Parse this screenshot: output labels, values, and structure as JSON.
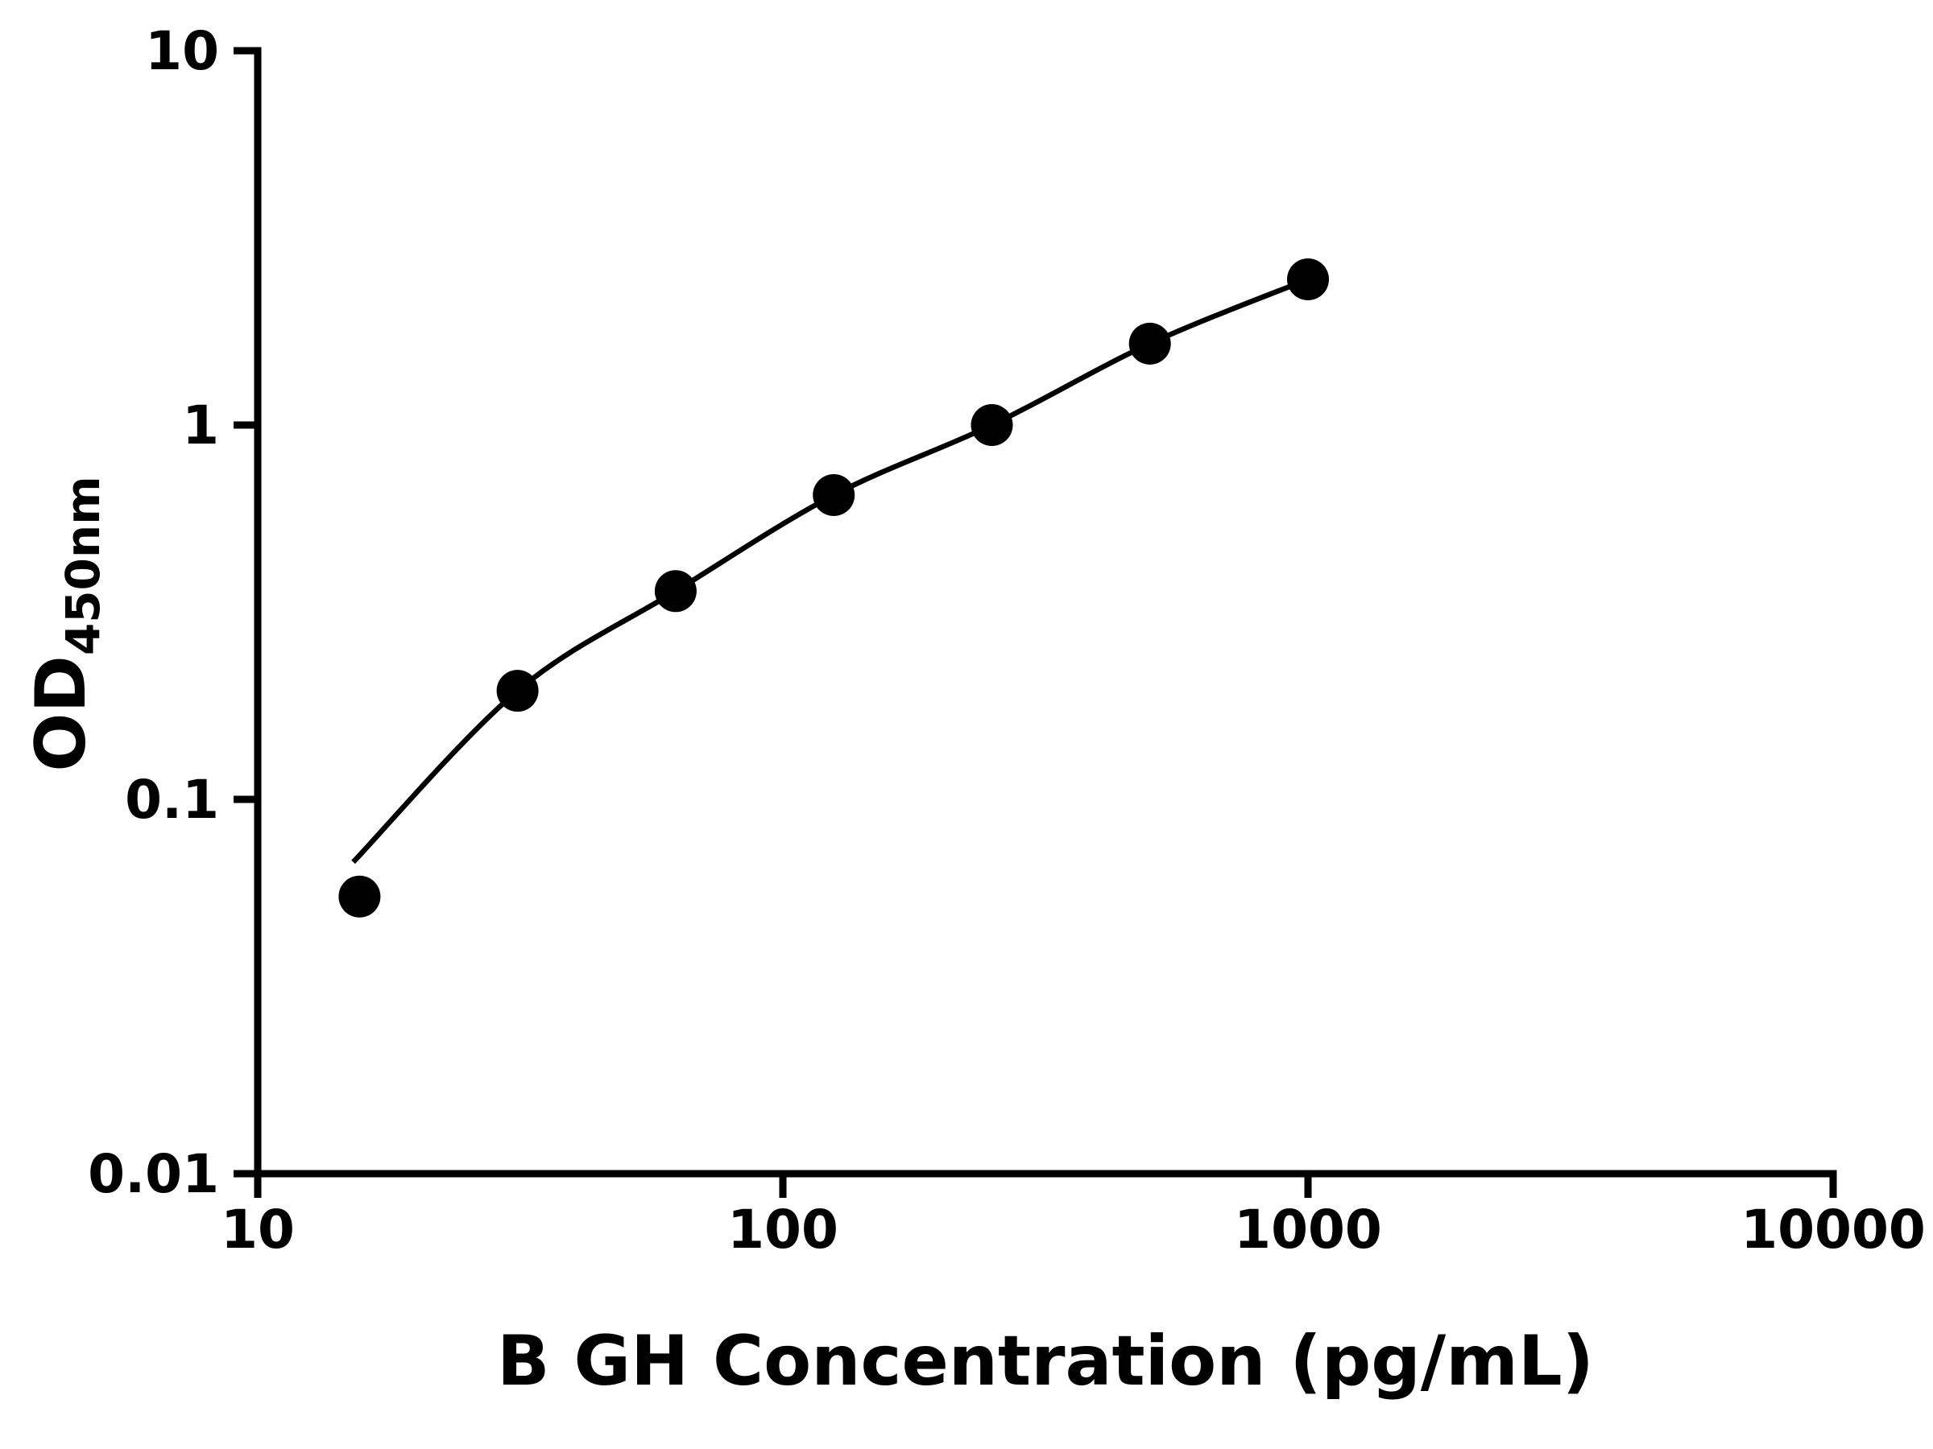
{
  "page": {
    "background": "#ffffff"
  },
  "chart_data": {
    "type": "scatter",
    "title": "",
    "xlabel": "B GH Concentration (pg/mL)",
    "ylabel_main": "OD",
    "ylabel_sub": "450nm",
    "x_scale": "log",
    "y_scale": "log",
    "xlim": [
      10,
      10000
    ],
    "ylim": [
      0.01,
      10
    ],
    "grid": false,
    "legend_position": "none",
    "axis_color": "#000000",
    "marker_color": "#000000",
    "curve_color": "#000000",
    "x_ticks": [
      {
        "value": 10,
        "label": "10"
      },
      {
        "value": 100,
        "label": "100"
      },
      {
        "value": 1000,
        "label": "1000"
      },
      {
        "value": 10000,
        "label": "10000"
      }
    ],
    "y_ticks": [
      {
        "value": 0.01,
        "label": "0.01"
      },
      {
        "value": 0.1,
        "label": "0.1"
      },
      {
        "value": 1,
        "label": "1"
      },
      {
        "value": 10,
        "label": "10"
      }
    ],
    "points": [
      {
        "x": 15.625,
        "y": 0.055
      },
      {
        "x": 31.25,
        "y": 0.195
      },
      {
        "x": 62.5,
        "y": 0.36
      },
      {
        "x": 125,
        "y": 0.65
      },
      {
        "x": 250,
        "y": 1.0
      },
      {
        "x": 500,
        "y": 1.65
      },
      {
        "x": 1000,
        "y": 2.45
      }
    ],
    "curve_start": {
      "x": 15.2,
      "y": 0.068
    }
  }
}
